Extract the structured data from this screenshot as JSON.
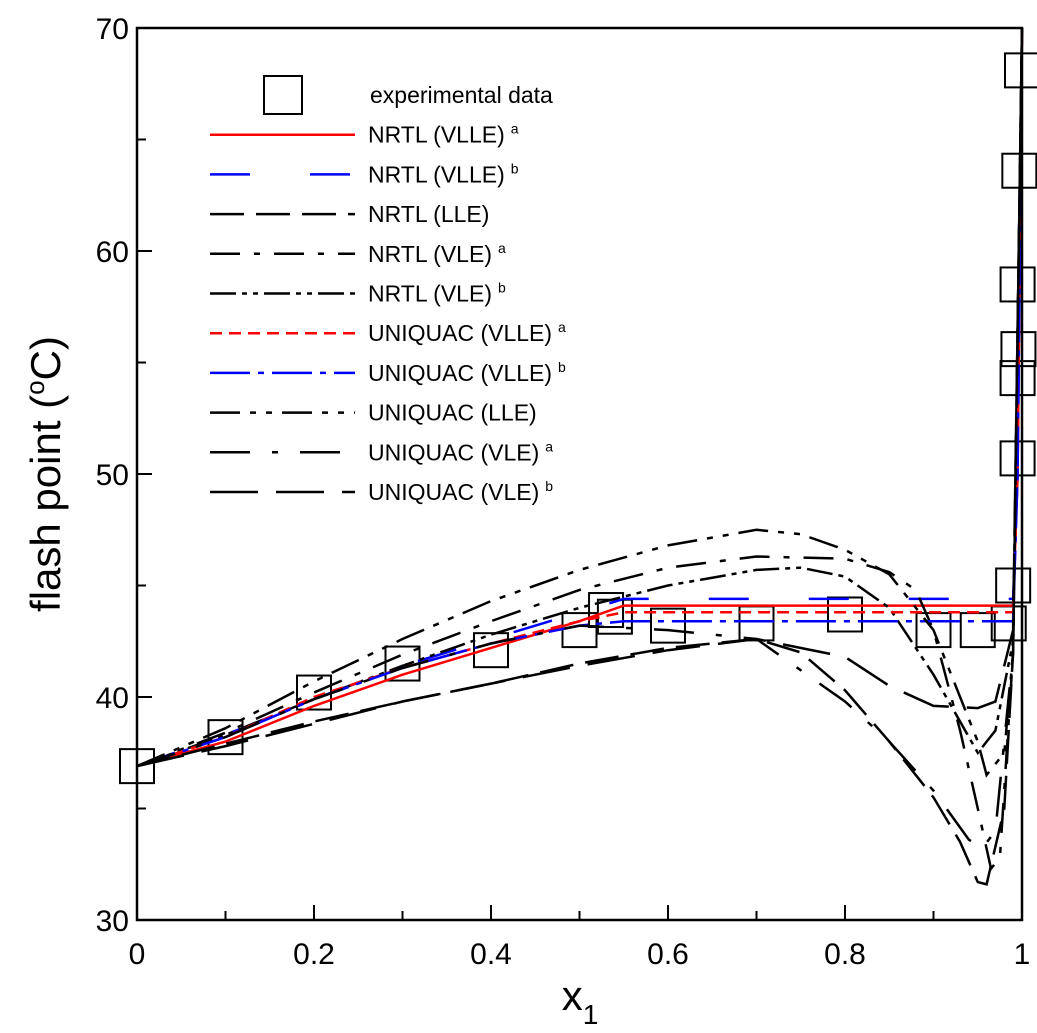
{
  "chart_data": {
    "type": "line",
    "ylabel": [
      "flash point (",
      "o",
      "C)"
    ],
    "xlabel": [
      "x",
      "1"
    ],
    "xlim": [
      0,
      1
    ],
    "xticks": [
      0,
      0.2,
      0.4,
      0.6,
      0.8,
      1
    ],
    "xminorticks": [
      0.1,
      0.3,
      0.5,
      0.7,
      0.9
    ],
    "ylim": [
      30,
      70
    ],
    "yticks": [
      30,
      40,
      50,
      60,
      70
    ],
    "yminorticks": [
      35,
      45,
      55,
      65
    ],
    "legend": "upper left",
    "series": [
      {
        "name": "experimental data",
        "marker": "square",
        "color": "#000000",
        "x": [
          0,
          0.1,
          0.2,
          0.3,
          0.4,
          0.5,
          0.53,
          0.54,
          0.6,
          0.7,
          0.8,
          0.9,
          0.95,
          0.985,
          0.99,
          0.995,
          0.995,
          0.996,
          0.995,
          0.997,
          1.0
        ],
        "values": [
          36.9,
          38.2,
          40.2,
          41.5,
          42.1,
          43.0,
          43.9,
          43.6,
          43.2,
          43.3,
          43.7,
          43.0,
          43.0,
          43.3,
          45.0,
          50.7,
          54.3,
          55.6,
          58.5,
          63.6,
          68.1
        ]
      },
      {
        "name": "NRTL (VLLE)",
        "superscript": "a",
        "color": "#ff0000",
        "dash": "solid",
        "x": [
          0,
          0.1,
          0.2,
          0.3,
          0.4,
          0.5,
          0.55,
          0.7,
          0.9,
          0.99,
          0.995,
          1
        ],
        "values": [
          36.9,
          38.0,
          39.6,
          41.0,
          42.2,
          43.4,
          44.1,
          44.1,
          44.1,
          44.1,
          50,
          70
        ]
      },
      {
        "name": "NRTL (VLLE)",
        "superscript": "b",
        "color": "#0000ff",
        "dash": "40,60",
        "x": [
          0,
          0.1,
          0.2,
          0.3,
          0.4,
          0.5,
          0.55,
          0.7,
          0.9,
          0.99,
          0.995,
          1
        ],
        "values": [
          36.9,
          38.3,
          39.9,
          41.4,
          42.6,
          43.8,
          44.4,
          44.4,
          44.4,
          44.4,
          50,
          70
        ]
      },
      {
        "name": "NRTL (LLE)",
        "color": "#000000",
        "dash": "34,12",
        "x": [
          0,
          0.1,
          0.2,
          0.3,
          0.4,
          0.5,
          0.6,
          0.7,
          0.75,
          0.8,
          0.85,
          0.9,
          0.93,
          0.95,
          0.96,
          0.98,
          0.99,
          1
        ],
        "values": [
          36.9,
          37.9,
          38.9,
          39.8,
          40.6,
          41.5,
          42.2,
          42.6,
          42.0,
          40.3,
          38.0,
          35.5,
          33.5,
          31.7,
          31.6,
          35,
          42,
          70
        ]
      },
      {
        "name": "NRTL (VLE)",
        "superscript": "a",
        "color": "#000000",
        "dash": "30,14,6,14",
        "x": [
          0,
          0.1,
          0.2,
          0.3,
          0.4,
          0.5,
          0.6,
          0.7,
          0.8,
          0.85,
          0.88,
          0.9,
          0.93,
          0.95,
          0.965,
          0.975,
          0.99,
          1
        ],
        "values": [
          36.9,
          38.4,
          40.2,
          41.9,
          43.4,
          44.8,
          45.8,
          46.3,
          46.2,
          45.6,
          44.8,
          43.0,
          38.5,
          35,
          32.3,
          32.8,
          42,
          70
        ]
      },
      {
        "name": "NRTL (VLE)",
        "superscript": "b",
        "color": "#000000",
        "dash": "26,6,5,6,5,6",
        "x": [
          0,
          0.1,
          0.2,
          0.3,
          0.4,
          0.5,
          0.6,
          0.7,
          0.75,
          0.8,
          0.85,
          0.9,
          0.95,
          0.97,
          0.99,
          1
        ],
        "values": [
          36.9,
          38.3,
          39.9,
          41.4,
          42.8,
          44.0,
          45.0,
          45.7,
          45.8,
          45.4,
          44,
          41,
          37.5,
          38.5,
          42.5,
          70
        ]
      },
      {
        "name": "UNIQUAC (VLLE)",
        "superscript": "a",
        "color": "#ff0000",
        "dash": "12,7",
        "x": [
          0,
          0.1,
          0.2,
          0.3,
          0.4,
          0.5,
          0.55,
          0.7,
          0.9,
          0.99,
          0.995,
          1
        ],
        "values": [
          36.9,
          38.2,
          40.0,
          41.3,
          42.4,
          43.4,
          43.8,
          43.8,
          43.8,
          43.8,
          50,
          70
        ]
      },
      {
        "name": "UNIQUAC (VLLE)",
        "superscript": "b",
        "color": "#0000ff",
        "dash": "40,8,6,8",
        "x": [
          0,
          0.1,
          0.2,
          0.3,
          0.4,
          0.5,
          0.55,
          0.7,
          0.9,
          0.99,
          0.995,
          1
        ],
        "values": [
          36.9,
          38.2,
          39.9,
          41.3,
          42.4,
          43.2,
          43.4,
          43.4,
          43.4,
          43.4,
          50,
          70
        ]
      },
      {
        "name": "UNIQUAC (LLE)",
        "color": "#000000",
        "dash": "30,10,6,10,6,10",
        "x": [
          0,
          0.1,
          0.2,
          0.3,
          0.4,
          0.5,
          0.6,
          0.7,
          0.75,
          0.8,
          0.85,
          0.9,
          0.95,
          0.96,
          0.98,
          0.99,
          1
        ],
        "values": [
          36.9,
          38.6,
          40.7,
          42.6,
          44.3,
          45.7,
          46.8,
          47.5,
          47.3,
          46.6,
          45.5,
          43,
          38,
          36.5,
          37.5,
          42,
          70
        ]
      },
      {
        "name": "UNIQUAC (VLE)",
        "superscript": "a",
        "color": "#000000",
        "dash": "40,22,6,22",
        "x": [
          0,
          0.1,
          0.2,
          0.3,
          0.4,
          0.5,
          0.6,
          0.7,
          0.8,
          0.85,
          0.9,
          0.94,
          0.955,
          0.97,
          0.99,
          1
        ],
        "values": [
          36.9,
          38.2,
          39.9,
          41.3,
          42.4,
          43.2,
          43.0,
          42.6,
          39.8,
          38,
          35.8,
          33.6,
          33.2,
          34,
          42,
          70
        ]
      },
      {
        "name": "UNIQUAC (VLE)",
        "superscript": "b",
        "color": "#000000",
        "dash": "48,18",
        "x": [
          0,
          0.1,
          0.2,
          0.3,
          0.4,
          0.5,
          0.6,
          0.7,
          0.8,
          0.85,
          0.9,
          0.95,
          0.97,
          0.99,
          1
        ],
        "values": [
          36.9,
          37.8,
          38.8,
          39.8,
          40.6,
          41.4,
          42.1,
          42.6,
          41.8,
          40.5,
          39.6,
          39.5,
          39.8,
          43,
          70
        ]
      }
    ]
  }
}
